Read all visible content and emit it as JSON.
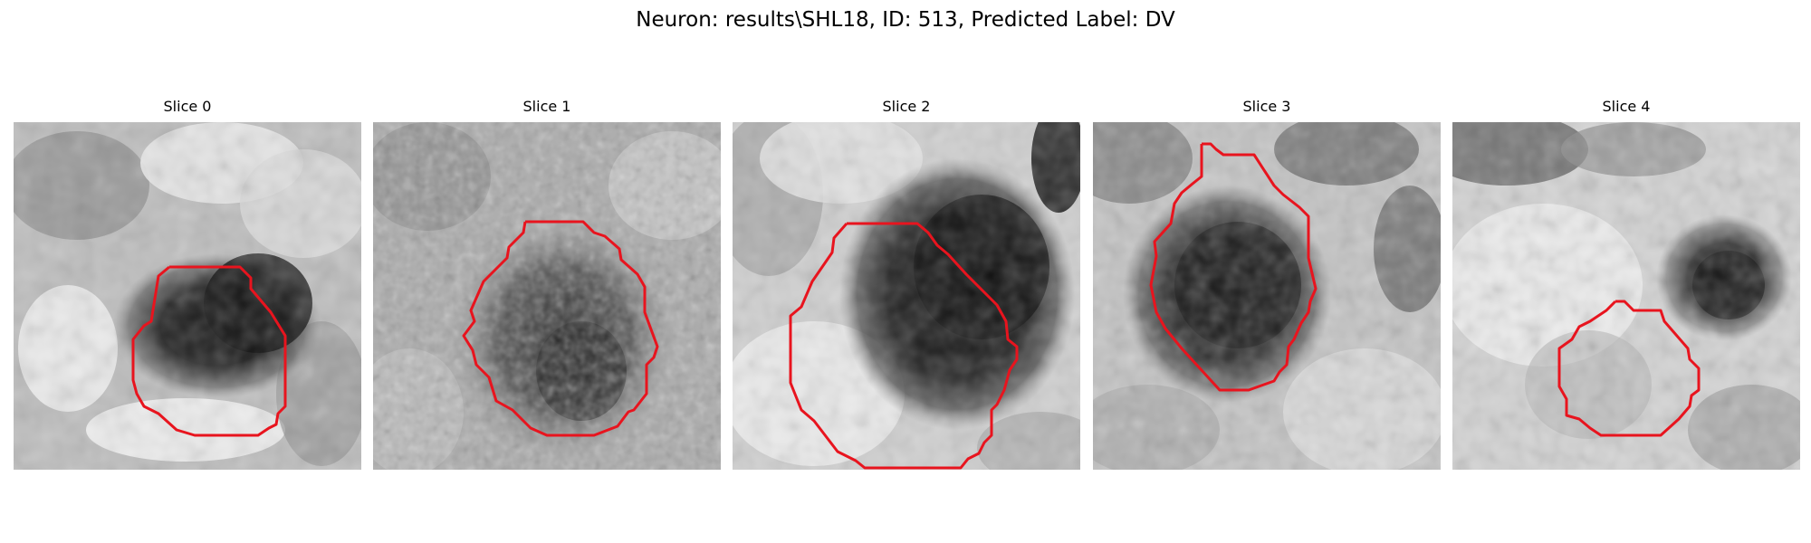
{
  "figure": {
    "title": "Neuron: results\\SHL18, ID: 513, Predicted Label: DV"
  },
  "colors": {
    "contour": "#e8141e",
    "background": "#ffffff"
  },
  "panels": [
    {
      "title": "Slice 0"
    },
    {
      "title": "Slice 1"
    },
    {
      "title": "Slice 2"
    },
    {
      "title": "Slice 3"
    },
    {
      "title": "Slice 4"
    }
  ]
}
